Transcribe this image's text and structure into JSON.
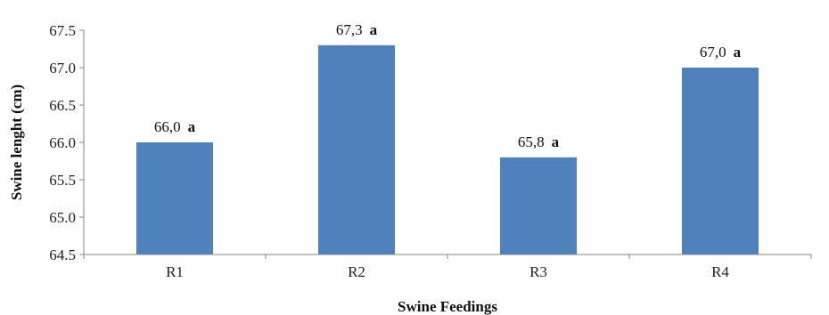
{
  "chart_data": {
    "type": "bar",
    "categories": [
      "R1",
      "R2",
      "R3",
      "R4"
    ],
    "values": [
      66.0,
      67.3,
      65.8,
      67.0
    ],
    "data_labels": [
      "66,0",
      "67,3",
      "65,8",
      "67,0"
    ],
    "significance_letters": [
      "a",
      "a",
      "a",
      "a"
    ],
    "xlabel": "Swine Feedings",
    "ylabel": "Swine lenght (cm)",
    "ylim": [
      64.5,
      67.5
    ],
    "y_ticks": [
      64.5,
      65.0,
      65.5,
      66.0,
      66.5,
      67.0,
      67.5
    ],
    "y_tick_labels": [
      "64.5",
      "65.0",
      "65.5",
      "66.0",
      "66.5",
      "67.0",
      "67.5"
    ],
    "grid": false,
    "legend": "none",
    "bar_color": "#4f81bd",
    "axis_color": "#868686"
  }
}
